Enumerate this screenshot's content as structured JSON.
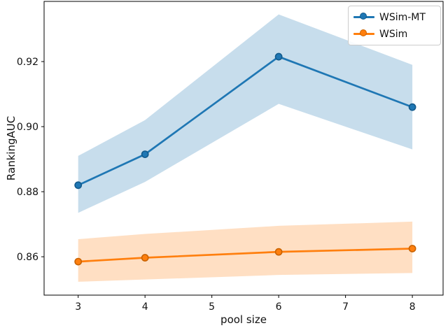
{
  "chart_data": {
    "type": "line",
    "title": "",
    "xlabel": "pool size",
    "ylabel": "RankingAUC",
    "x": [
      3,
      4,
      6,
      8
    ],
    "xticks": [
      3,
      4,
      5,
      6,
      7,
      8
    ],
    "xtick_labels": [
      "3",
      "4",
      "5",
      "6",
      "7",
      "8"
    ],
    "yticks": [
      0.86,
      0.88,
      0.9,
      0.92
    ],
    "ytick_labels": [
      "0.86",
      "0.88",
      "0.90",
      "0.92"
    ],
    "xlim": [
      2.49,
      8.46
    ],
    "ylim": [
      0.8482,
      0.9385
    ],
    "grid": false,
    "legend_position": "upper right",
    "series": [
      {
        "name": "WSim-MT",
        "color": "#1f77b4",
        "edge_color": "#125a8c",
        "values": [
          0.882,
          0.8915,
          0.9215,
          0.906
        ],
        "band_low": [
          0.8735,
          0.883,
          0.907,
          0.893
        ],
        "band_high": [
          0.891,
          0.902,
          0.9345,
          0.919
        ],
        "band_alpha": 0.25
      },
      {
        "name": "WSim",
        "color": "#ff7f0e",
        "edge_color": "#c96200",
        "values": [
          0.8585,
          0.8597,
          0.8615,
          0.8625
        ],
        "band_low": [
          0.8523,
          0.853,
          0.8544,
          0.855
        ],
        "band_high": [
          0.8654,
          0.867,
          0.8695,
          0.8708
        ],
        "band_alpha": 0.25
      }
    ]
  }
}
